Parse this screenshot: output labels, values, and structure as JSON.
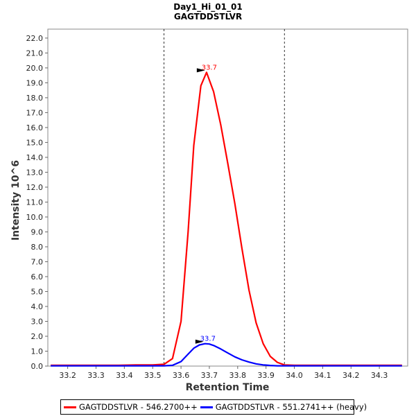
{
  "chart_data": {
    "type": "line",
    "title": "Day1_Hi_01_01",
    "subtitle": "GAGTDDSTLVR",
    "xlabel": "Retention Time",
    "ylabel": "Intensity 10^6",
    "xlim": [
      33.13,
      34.4
    ],
    "ylim": [
      0,
      22.6
    ],
    "xticks": [
      "33.2",
      "33.3",
      "33.4",
      "33.5",
      "33.6",
      "33.7",
      "33.8",
      "33.9",
      "34.0",
      "34.1",
      "34.2",
      "34.3"
    ],
    "yticks": [
      "0.0",
      "1.0",
      "2.0",
      "3.0",
      "4.0",
      "5.0",
      "6.0",
      "7.0",
      "8.0",
      "9.0",
      "10.0",
      "11.0",
      "12.0",
      "13.0",
      "14.0",
      "15.0",
      "16.0",
      "17.0",
      "18.0",
      "19.0",
      "20.0",
      "21.0",
      "22.0"
    ],
    "integration_bounds": [
      33.54,
      33.965
    ],
    "grid": false,
    "legend_position": "bottom",
    "series": [
      {
        "name": "GAGTDDSTLVR - 546.2700++",
        "color": "#ff0000",
        "peak_label": "33.7",
        "peak": [
          33.69,
          19.7
        ],
        "x": [
          33.14,
          33.2,
          33.26,
          33.32,
          33.38,
          33.44,
          33.5,
          33.54,
          33.57,
          33.6,
          33.625,
          33.645,
          33.67,
          33.69,
          33.715,
          33.74,
          33.765,
          33.79,
          33.815,
          33.84,
          33.865,
          33.89,
          33.915,
          33.94,
          33.965,
          34.0,
          34.1,
          34.2,
          34.3,
          34.38
        ],
        "y": [
          0.05,
          0.05,
          0.05,
          0.05,
          0.05,
          0.08,
          0.08,
          0.12,
          0.5,
          3.0,
          9.0,
          14.8,
          18.8,
          19.7,
          18.4,
          16.2,
          13.6,
          10.9,
          7.9,
          5.1,
          2.9,
          1.5,
          0.65,
          0.25,
          0.08,
          0.05,
          0.05,
          0.05,
          0.05,
          0.05
        ]
      },
      {
        "name": "GAGTDDSTLVR - 551.2741++ (heavy)",
        "color": "#0000ff",
        "peak_label": "33.7",
        "peak": [
          33.685,
          1.5
        ],
        "x": [
          33.14,
          33.3,
          33.45,
          33.54,
          33.57,
          33.6,
          33.625,
          33.645,
          33.665,
          33.685,
          33.7,
          33.715,
          33.74,
          33.765,
          33.79,
          33.815,
          33.84,
          33.865,
          33.89,
          33.915,
          33.94,
          33.965,
          34.0,
          34.2,
          34.38
        ],
        "y": [
          0.02,
          0.02,
          0.02,
          0.02,
          0.05,
          0.3,
          0.8,
          1.2,
          1.42,
          1.5,
          1.48,
          1.38,
          1.15,
          0.88,
          0.62,
          0.42,
          0.27,
          0.15,
          0.08,
          0.04,
          0.02,
          0.02,
          0.02,
          0.02,
          0.02
        ]
      }
    ]
  }
}
